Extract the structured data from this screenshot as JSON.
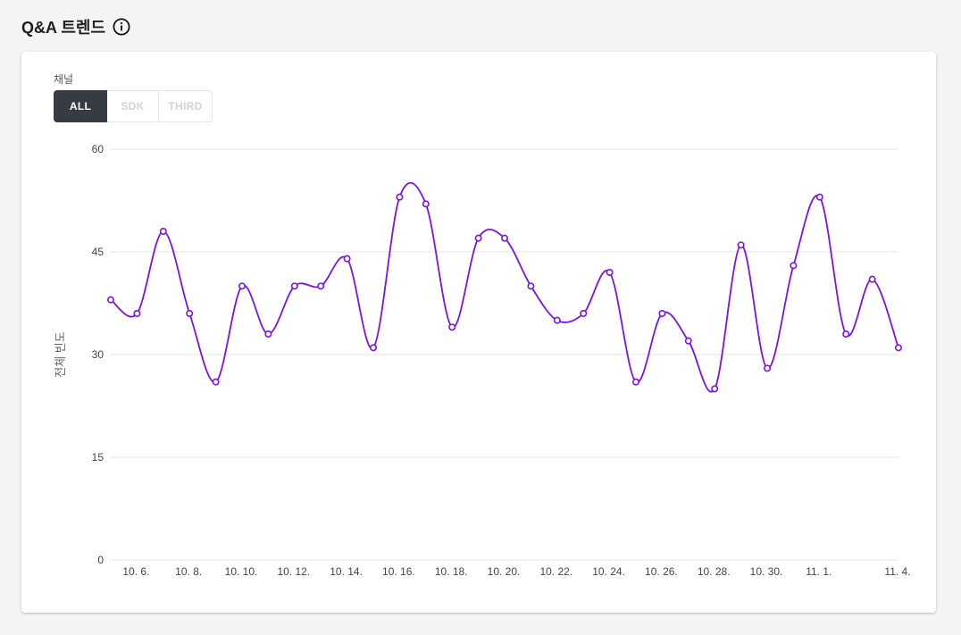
{
  "header": {
    "title": "Q&A 트렌드",
    "info_icon": "info-circle-icon"
  },
  "filter": {
    "label": "채널",
    "options": [
      "ALL",
      "SDK",
      "THIRD"
    ],
    "selected": "ALL"
  },
  "colors": {
    "line": "#7a14e6",
    "active_button": "#363b44",
    "grid": "#e6e6e6"
  },
  "chart_data": {
    "type": "line",
    "ylabel": "전체 빈도",
    "ylim": [
      0,
      60
    ],
    "yticks": [
      0,
      15,
      30,
      45,
      60
    ],
    "x_tick_labels": [
      "10. 6.",
      "10. 8.",
      "10. 10.",
      "10. 12.",
      "10. 14.",
      "10. 16.",
      "10. 18.",
      "10. 20.",
      "10. 22.",
      "10. 24.",
      "10. 26.",
      "10. 28.",
      "10. 30.",
      "11. 1.",
      "11. 4."
    ],
    "x": [
      "10. 5.",
      "10. 6.",
      "10. 7.",
      "10. 8.",
      "10. 9.",
      "10. 10.",
      "10. 11.",
      "10. 12.",
      "10. 13.",
      "10. 14.",
      "10. 15.",
      "10. 16.",
      "10. 17.",
      "10. 18.",
      "10. 19.",
      "10. 20.",
      "10. 21.",
      "10. 22.",
      "10. 23.",
      "10. 24.",
      "10. 25.",
      "10. 26.",
      "10. 27.",
      "10. 28.",
      "10. 29.",
      "10. 30.",
      "10. 31.",
      "11. 1.",
      "11. 2.",
      "11. 3.",
      "11. 4."
    ],
    "series": [
      {
        "values": [
          38,
          36,
          48,
          36,
          26,
          40,
          33,
          40,
          40,
          44,
          31,
          53,
          52,
          34,
          47,
          47,
          40,
          35,
          36,
          42,
          26,
          36,
          32,
          25,
          46,
          28,
          43,
          53,
          33,
          41,
          31
        ]
      }
    ],
    "grid": true,
    "legend": "none"
  }
}
